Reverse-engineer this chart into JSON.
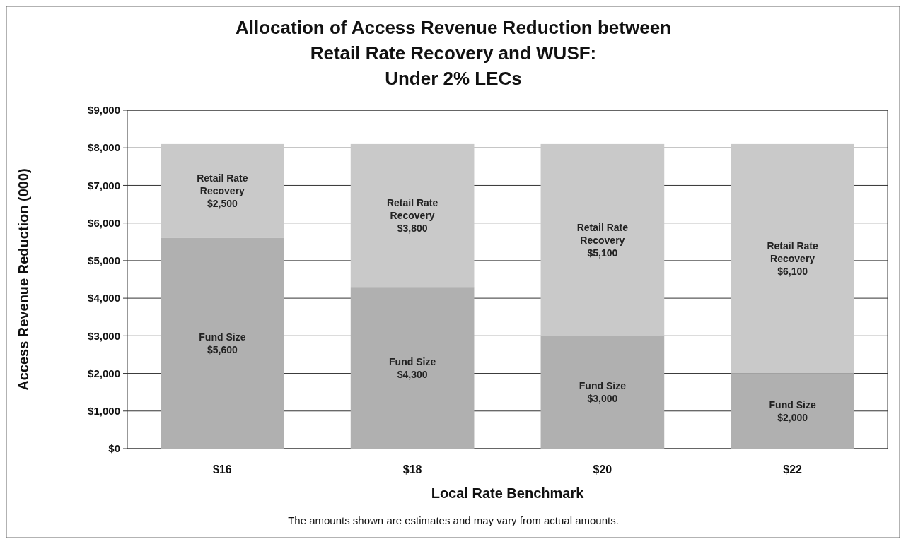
{
  "chart_data": {
    "type": "bar",
    "title": "Allocation of Access Revenue Reduction between\nRetail Rate Recovery and WUSF:\nUnder 2% LECs",
    "xlabel": "Local Rate Benchmark",
    "ylabel": "Access Revenue Reduction (000)",
    "categories": [
      "$16",
      "$18",
      "$20",
      "$22"
    ],
    "stacked": true,
    "series": [
      {
        "name": "Fund Size",
        "color": "#b0b0b0",
        "values": [
          5600,
          4300,
          3000,
          2000
        ],
        "value_labels": [
          "$5,600",
          "$4,300",
          "$3,000",
          "$2,000"
        ]
      },
      {
        "name": "Retail Rate Recovery",
        "color": "#c9c9c9",
        "values": [
          2500,
          3800,
          5100,
          6100
        ],
        "value_labels": [
          "$2,500",
          "$3,800",
          "$5,100",
          "$6,100"
        ]
      }
    ],
    "ylim": [
      0,
      9000
    ],
    "yticks": [
      {
        "value": 0,
        "label": "$0"
      },
      {
        "value": 1000,
        "label": "$1,000"
      },
      {
        "value": 2000,
        "label": "$2,000"
      },
      {
        "value": 3000,
        "label": "$3,000"
      },
      {
        "value": 4000,
        "label": "$4,000"
      },
      {
        "value": 5000,
        "label": "$5,000"
      },
      {
        "value": 6000,
        "label": "$6,000"
      },
      {
        "value": 7000,
        "label": "$7,000"
      },
      {
        "value": 8000,
        "label": "$8,000"
      },
      {
        "value": 9000,
        "label": "$9,000"
      }
    ],
    "grid": "y",
    "annotations": [
      "The amounts shown are estimates and may vary from actual amounts."
    ]
  }
}
